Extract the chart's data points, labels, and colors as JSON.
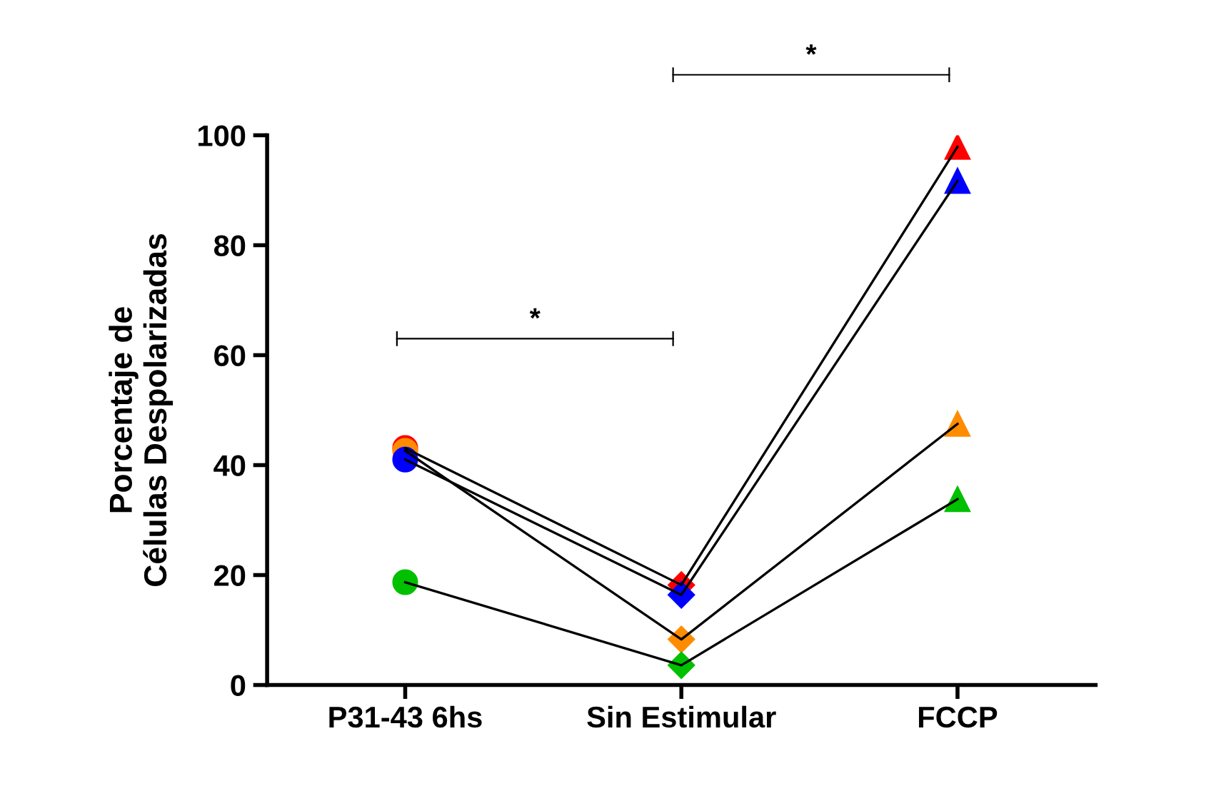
{
  "chart_data": {
    "type": "line",
    "categories": [
      "P31-43 6hs",
      "Sin Estimular",
      "FCCP"
    ],
    "ylabel": "Porcentaje de\nCélulas Despolarizadas",
    "ylim": [
      0,
      100
    ],
    "yticks": [
      0,
      20,
      40,
      60,
      80,
      100
    ],
    "marker": [
      "circle",
      "diamond",
      "triangle"
    ],
    "series": [
      {
        "color": "#ff0000",
        "values": [
          43.1,
          18.2,
          97.9
        ]
      },
      {
        "color": "#ff8c00",
        "values": [
          42.6,
          8.3,
          47.5
        ]
      },
      {
        "color": "#0000ff",
        "values": [
          41.0,
          16.4,
          91.7
        ]
      },
      {
        "color": "#00c000",
        "values": [
          18.7,
          3.6,
          33.8
        ]
      }
    ],
    "annotations": [
      "*",
      "*"
    ],
    "grid": false,
    "legend": false
  }
}
